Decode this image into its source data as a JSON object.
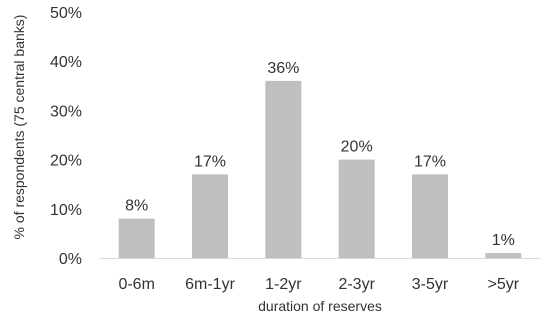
{
  "chart_data": {
    "type": "bar",
    "categories": [
      "0-6m",
      "6m-1yr",
      "1-2yr",
      "2-3yr",
      "3-5yr",
      ">5yr"
    ],
    "values": [
      8,
      17,
      36,
      20,
      17,
      1
    ],
    "data_labels": [
      "8%",
      "17%",
      "36%",
      "20%",
      "17%",
      "1%"
    ],
    "yticks": [
      "0%",
      "10%",
      "20%",
      "30%",
      "40%",
      "50%"
    ],
    "ylim": [
      0,
      50
    ],
    "xlabel": "duration of reserves",
    "ylabel": "% of respondents (75 central banks)",
    "grid": false,
    "legend": "none",
    "bar_color": "#bfbfbf",
    "axis_color": "#d9d9d9",
    "text_color": "#333333"
  }
}
